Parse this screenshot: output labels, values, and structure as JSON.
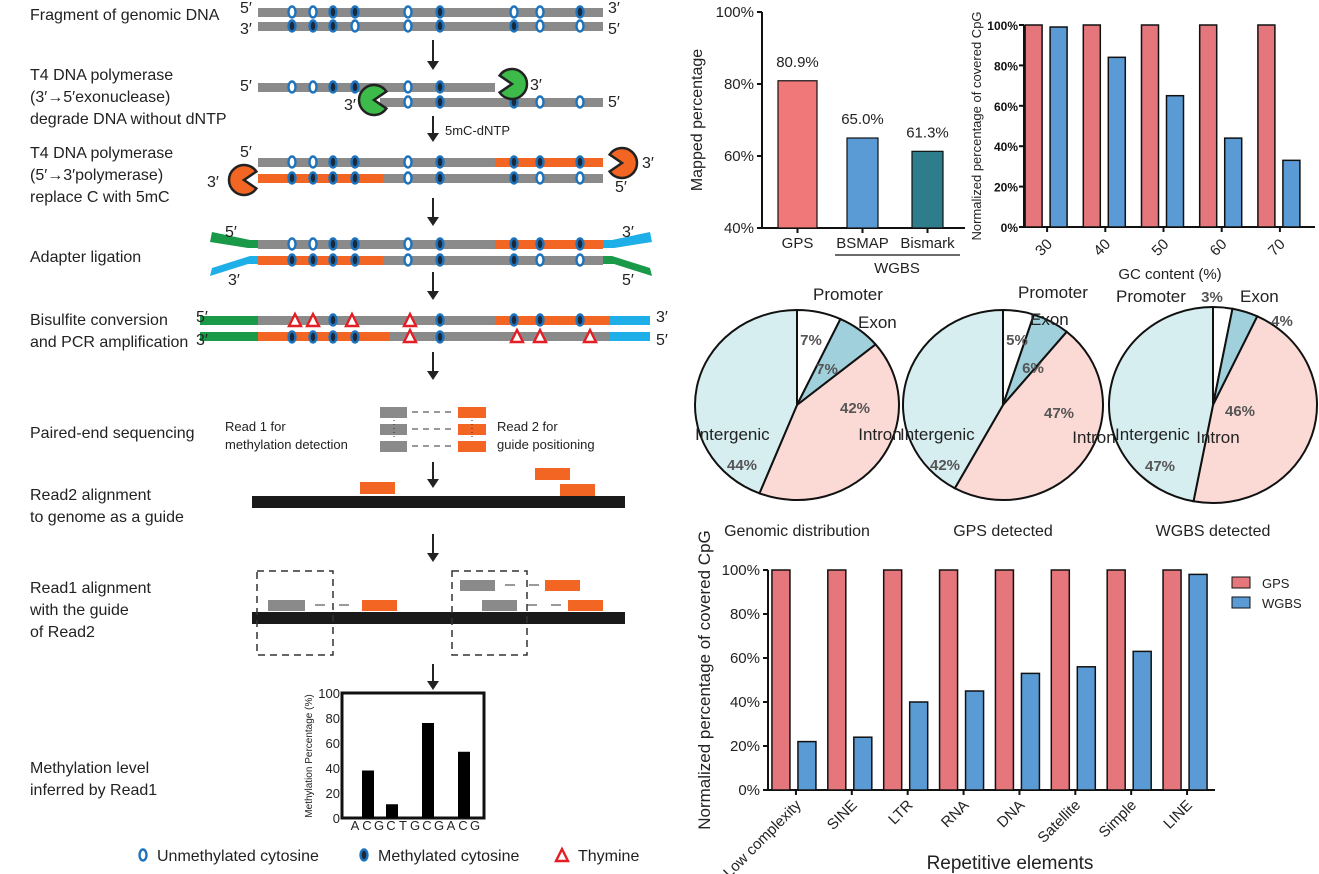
{
  "diagram": {
    "steps": [
      [
        "Fragment of genomic DNA"
      ],
      [
        "T4 DNA polymerase",
        "(3′→5′exonuclease)",
        "degrade DNA without dNTP"
      ],
      [
        "T4 DNA polymerase",
        "(5′→3′polymerase)",
        "replace C with 5mC"
      ],
      [
        "Adapter ligation"
      ],
      [
        "Bisulfite conversion",
        "and PCR amplification"
      ],
      [
        "Paired-end sequencing"
      ],
      [
        "Read2 alignment",
        "to genome as a guide"
      ],
      [
        "Read1 alignment",
        "with the guide",
        "of Read2"
      ],
      [
        "Methylation level",
        "inferred by Read1"
      ]
    ],
    "prime5": "5′",
    "prime3": "3′",
    "dntp_label": "5mC-dNTP",
    "read1_label": [
      "Read 1 for",
      "methylation detection"
    ],
    "read2_label": [
      "Read 2 for",
      "guide positioning"
    ],
    "colors": {
      "strand": "#8a8a8a",
      "new_strand": "#f26522",
      "adapter_green": "#1a9a48",
      "adapter_blue": "#1eaee8",
      "cytosine": "#1e73be",
      "thymine": "#e31e24",
      "pacman_green": "#3dbb4a",
      "pacman_orange": "#f26522"
    },
    "legend": [
      {
        "label": "Unmethylated cytosine",
        "icon": "unmethylated-cytosine-icon"
      },
      {
        "label": "Methylated cytosine",
        "icon": "methylated-cytosine-icon"
      },
      {
        "label": "Thymine",
        "icon": "thymine-triangle-icon"
      }
    ]
  },
  "chart_data": [
    {
      "type": "bar",
      "id": "methylation-level",
      "ylabel": "Methylation Percentage (%)",
      "categories": [
        "A",
        "C",
        "G",
        "C",
        "T",
        "G",
        "C",
        "G",
        "A",
        "C",
        "G"
      ],
      "values": [
        null,
        38,
        null,
        11,
        null,
        null,
        76,
        null,
        null,
        53,
        null
      ],
      "ylim": [
        0,
        100
      ],
      "yticks": [
        "0",
        "20",
        "40",
        "60",
        "80",
        "100"
      ]
    },
    {
      "type": "bar",
      "id": "mapped-percentage",
      "ylabel": "Mapped percentage",
      "categories": [
        "GPS",
        "BSMAP",
        "Bismark"
      ],
      "values": [
        80.9,
        65.0,
        61.3
      ],
      "data_labels": [
        "80.9%",
        "65.0%",
        "61.3%"
      ],
      "group_label": "WGBS",
      "ylim": [
        40,
        100
      ],
      "yticks": [
        "40%",
        "60%",
        "80%",
        "100%"
      ],
      "colors": [
        "#f07878",
        "#5b9bd5",
        "#2e7d8d"
      ]
    },
    {
      "type": "bar",
      "id": "gc-content",
      "xlabel": "GC content (%)",
      "ylabel": "Normalized percentage of covered CpG",
      "categories": [
        "30",
        "40",
        "50",
        "60",
        "70"
      ],
      "series": [
        {
          "values": [
            100,
            100,
            100,
            100,
            100
          ],
          "color": "#e5767c"
        },
        {
          "values": [
            99,
            84,
            65,
            44,
            33
          ],
          "color": "#5b9bd5"
        }
      ],
      "ylim": [
        0,
        100
      ],
      "yticks": [
        "0%",
        "20%",
        "40%",
        "60%",
        "80%",
        "100%"
      ]
    },
    {
      "type": "pie",
      "id": "pies",
      "slice_labels": [
        "Promoter",
        "Exon",
        "Intron",
        "Intergenic"
      ],
      "colors": [
        "#ffffff",
        "#9fd0dc",
        "#fbdad6",
        "#d7eef0"
      ],
      "pies": [
        {
          "title": "Genomic distribution",
          "values": [
            7,
            7,
            42,
            44
          ],
          "labels": [
            "7%",
            "7%",
            "42%",
            "44%"
          ]
        },
        {
          "title": "GPS detected",
          "values": [
            5,
            6,
            47,
            42
          ],
          "labels": [
            "5%",
            "6%",
            "47%",
            "42%"
          ]
        },
        {
          "title": "WGBS detected",
          "values": [
            3,
            4,
            46,
            47
          ],
          "labels": [
            "3%",
            "4%",
            "46%",
            "47%"
          ]
        }
      ]
    },
    {
      "type": "bar",
      "id": "repetitive",
      "xlabel": "Repetitive elements",
      "ylabel": "Normalized percentage of covered CpG",
      "categories": [
        "Low complexity",
        "SINE",
        "LTR",
        "RNA",
        "DNA",
        "Satellite",
        "Simple",
        "LINE"
      ],
      "series": [
        {
          "name": "GPS",
          "values": [
            100,
            100,
            100,
            100,
            100,
            100,
            100,
            100
          ],
          "color": "#e5767c"
        },
        {
          "name": "WGBS",
          "values": [
            22,
            24,
            40,
            45,
            53,
            56,
            63,
            98
          ],
          "color": "#5b9bd5"
        }
      ],
      "ylim": [
        0,
        100
      ],
      "yticks": [
        "0%",
        "20%",
        "40%",
        "60%",
        "80%",
        "100%"
      ],
      "legend_position": "top-right"
    }
  ]
}
